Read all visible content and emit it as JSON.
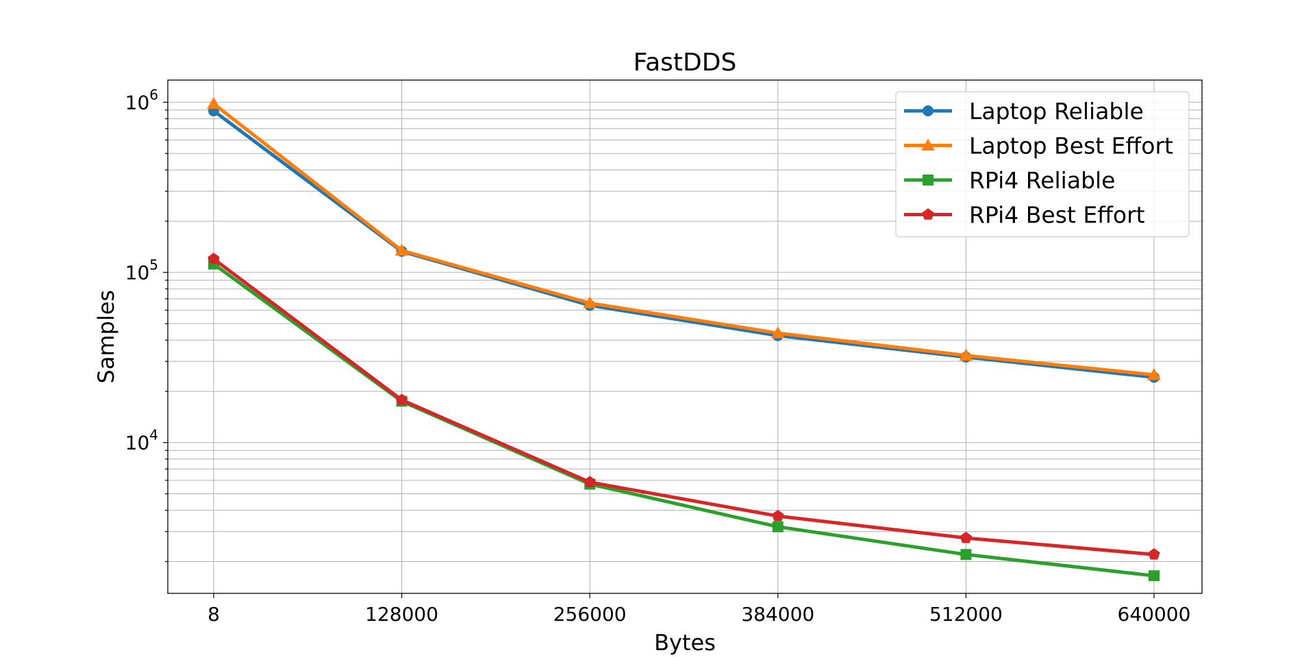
{
  "chart_data": {
    "type": "line",
    "title": "FastDDS",
    "xlabel": "Bytes",
    "ylabel": "Samples",
    "yscale": "log",
    "grid": true,
    "legend_position": "top-right",
    "x": [
      8,
      128000,
      256000,
      384000,
      512000,
      640000
    ],
    "x_ticks": [
      "8",
      "128000",
      "256000",
      "384000",
      "512000",
      "640000"
    ],
    "y_ticks": [
      {
        "value": 10000,
        "base": "10",
        "exp": "4"
      },
      {
        "value": 100000,
        "base": "10",
        "exp": "5"
      },
      {
        "value": 1000000,
        "base": "10",
        "exp": "6"
      }
    ],
    "ylim": [
      1300,
      1350000
    ],
    "series": [
      {
        "name": "Laptop Reliable",
        "color": "#1f77b4",
        "marker": "circle",
        "values": [
          890000,
          133000,
          64000,
          42500,
          31800,
          24200
        ]
      },
      {
        "name": "Laptop Best Effort",
        "color": "#ff7f0e",
        "marker": "triangle",
        "values": [
          980000,
          134500,
          66000,
          44000,
          32500,
          25000
        ]
      },
      {
        "name": "RPi4 Reliable",
        "color": "#2ca02c",
        "marker": "square",
        "values": [
          112000,
          17500,
          5700,
          3200,
          2200,
          1650
        ]
      },
      {
        "name": "RPi4 Best Effort",
        "color": "#d62728",
        "marker": "pentagon",
        "values": [
          120000,
          17800,
          5850,
          3700,
          2750,
          2200
        ]
      }
    ]
  }
}
